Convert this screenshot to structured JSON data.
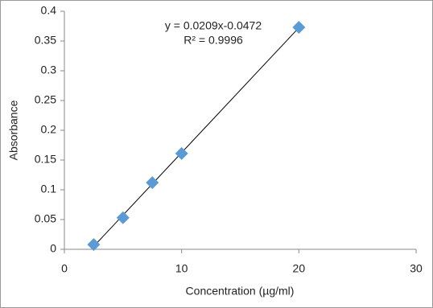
{
  "chart_data": {
    "type": "scatter",
    "x_label": "Concentration (µg/ml)",
    "y_label": "Absorbance",
    "annotations": [
      "y = 0.0209x-0.0472",
      "R² = 0.9996"
    ],
    "series": [
      {
        "name": "Absorbance",
        "color": "#5b9bd5",
        "x": [
          2.5,
          5,
          7.5,
          10,
          20
        ],
        "values": [
          0.008,
          0.053,
          0.112,
          0.161,
          0.373
        ]
      }
    ],
    "xlim": [
      0,
      30
    ],
    "xticks": [
      0,
      10,
      20,
      30
    ],
    "ylim": [
      0,
      0.4
    ],
    "yticks": [
      0,
      0.05,
      0.1,
      0.15,
      0.2,
      0.25,
      0.3,
      0.35,
      0.4
    ],
    "grid": false,
    "trendline": true
  }
}
